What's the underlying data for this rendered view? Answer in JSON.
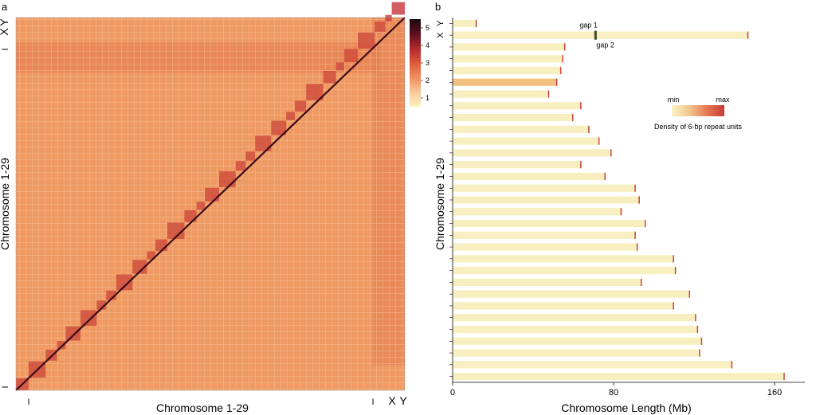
{
  "chart_data": [
    {
      "panel": "a",
      "type": "heatmap",
      "xlabel": "Chromosome 1-29",
      "ylabel": "Chromosome 1-29",
      "x_tick_labels": [
        "I",
        "I",
        "X",
        "Y"
      ],
      "y_tick_labels": [
        "I",
        "I",
        "X",
        "Y"
      ],
      "colorbar": {
        "ticks": [
          "1",
          "2",
          "3",
          "4",
          "5"
        ],
        "range": [
          0.5,
          5.5
        ],
        "colors": [
          "#fbf0c2",
          "#f7c99a",
          "#ef8f5c",
          "#dd5a3d",
          "#b0282c",
          "#5a0f1f",
          "#1a0b0f"
        ]
      },
      "block_count": 31,
      "background_color": "#ef9a63",
      "upper_right_color": "#e3784d"
    },
    {
      "panel": "b",
      "type": "bar",
      "orientation": "horizontal",
      "xlabel": "Chromosome Length (Mb)",
      "ylabel": "Chromosome 1-29",
      "xlim": [
        0,
        175
      ],
      "x_ticks": [
        "0",
        "80",
        "160"
      ],
      "x_tick_values": [
        0,
        80,
        160
      ],
      "categories": [
        "Y",
        "X",
        "",
        "",
        "",
        "",
        "",
        "",
        "",
        "",
        "",
        "",
        "",
        "",
        "",
        "",
        "",
        "",
        "",
        "",
        "",
        "",
        "",
        "",
        "",
        "",
        "",
        "",
        "",
        "",
        ""
      ],
      "values": [
        12,
        147,
        56,
        55,
        54,
        52,
        48,
        64,
        60,
        68,
        73,
        79,
        64,
        76,
        91,
        93,
        84,
        96,
        91,
        92,
        110,
        111,
        94,
        118,
        110,
        121,
        122,
        124,
        123,
        139,
        165
      ],
      "annotations": [
        {
          "text": "gap 1",
          "chromosome": "X",
          "position_mb": 71
        },
        {
          "text": "gap 2",
          "chromosome": "X",
          "position_mb": 71
        }
      ],
      "legend": {
        "min_label": "min",
        "max_label": "max",
        "title": "Density of 6-bp repeat units",
        "colors": [
          "#fbf3c8",
          "#f3c58f",
          "#e67a52",
          "#c83a3a"
        ]
      },
      "bar_color": "#f8efc0",
      "dense_bar_color": "#f2c080",
      "end_mark_color": "#c8423a",
      "gap_color": "#3a4a2a"
    }
  ]
}
